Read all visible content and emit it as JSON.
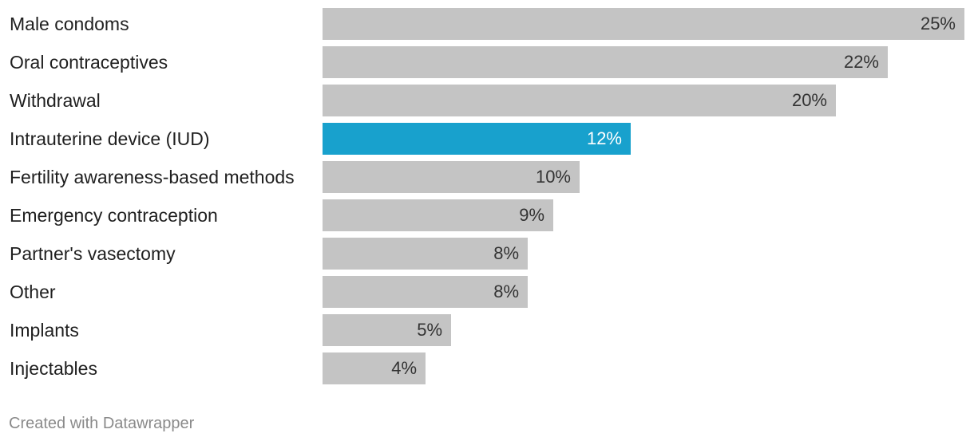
{
  "chart_data": {
    "type": "bar",
    "orientation": "horizontal",
    "categories": [
      "Male condoms",
      "Oral contraceptives",
      "Withdrawal",
      "Intrauterine device (IUD)",
      "Fertility awareness-based methods",
      "Emergency contraception",
      "Partner's vasectomy",
      "Other",
      "Implants",
      "Injectables"
    ],
    "values": [
      25,
      22,
      20,
      12,
      10,
      9,
      8,
      8,
      5,
      4
    ],
    "value_labels": [
      "25%",
      "22%",
      "20%",
      "12%",
      "10%",
      "9%",
      "8%",
      "8%",
      "5%",
      "4%"
    ],
    "highlight_index": 3,
    "xlim": [
      0,
      25
    ],
    "grid": false,
    "legend": false,
    "colors": {
      "default_bar": "#c4c4c4",
      "highlight_bar": "#18a1cd",
      "default_label": "#333333",
      "highlight_label": "#ffffff"
    }
  },
  "footer": {
    "credit": "Created with Datawrapper"
  }
}
